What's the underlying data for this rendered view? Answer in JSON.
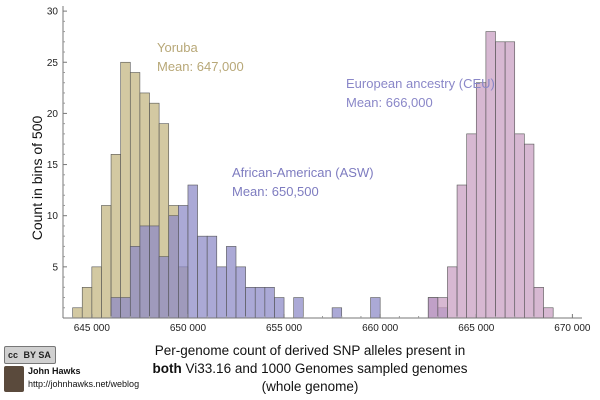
{
  "chart_data": {
    "type": "histogram",
    "ylabel": "Count in bins of 500",
    "xlabel_lines": [
      "Per-genome count of derived SNP alleles present in",
      "Vi33.16 and 1000 Genomes sampled genomes",
      "(whole genome)"
    ],
    "xlabel_bold": "both",
    "xlim": [
      643500,
      670500
    ],
    "ylim": [
      0,
      30.5
    ],
    "bin_width": 500,
    "x_ticks": [
      645000,
      650000,
      655000,
      660000,
      665000,
      670000
    ],
    "x_tick_labels": [
      "645 000",
      "650 000",
      "655 000",
      "660 000",
      "665 000",
      "670 000"
    ],
    "y_ticks": [
      5,
      10,
      15,
      20,
      25,
      30
    ],
    "y_tick_labels": [
      "5",
      "10",
      "15",
      "20",
      "25",
      "30"
    ],
    "series": [
      {
        "name": "Yoruba",
        "mean_label": "Mean: 647,000",
        "color": "#c2b47e",
        "bin_starts": [
          644000,
          644500,
          645000,
          645500,
          646000,
          646500,
          647000,
          647500,
          648000,
          648500,
          649000,
          649500
        ],
        "counts": [
          1,
          3,
          5,
          11,
          16,
          25,
          24,
          22,
          21,
          19,
          11,
          5
        ]
      },
      {
        "name": "African-American (ASW)",
        "mean_label": "Mean: 650,500",
        "color": "#8a88c6",
        "bin_starts": [
          646000,
          646500,
          647000,
          647500,
          648000,
          648500,
          649000,
          649500,
          650000,
          650500,
          651000,
          651500,
          652000,
          652500,
          653000,
          653500,
          654000,
          654500,
          655500,
          657500,
          659500,
          662500,
          663000
        ],
        "counts": [
          2,
          2,
          7,
          9,
          9,
          6,
          10,
          11,
          13,
          8,
          8,
          5,
          7,
          5,
          3,
          3,
          3,
          2,
          2,
          1,
          2,
          2,
          1
        ]
      },
      {
        "name": "European ancestry (CEU)",
        "mean_label": "Mean: 666,000",
        "color": "#c79cc0",
        "bin_starts": [
          662500,
          663000,
          663500,
          664000,
          664500,
          665000,
          665500,
          666000,
          666500,
          667000,
          667500,
          668000,
          668500
        ],
        "counts": [
          2,
          2,
          5,
          13,
          18,
          23,
          28,
          27,
          27,
          18,
          17,
          3,
          1
        ]
      }
    ]
  },
  "credit": {
    "license_badge": "BY SA",
    "name": "John Hawks",
    "url": "http://johnhawks.net/weblog"
  }
}
